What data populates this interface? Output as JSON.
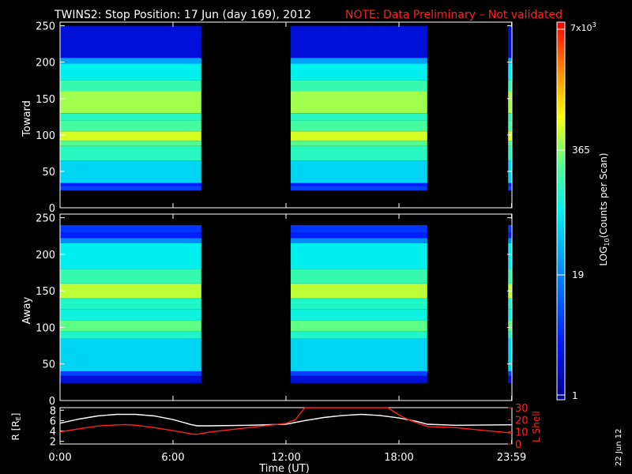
{
  "title": {
    "main": "TWINS2: Stop Position: 17 Jun (day 169), 2012",
    "note": "NOTE: Data Preliminary – Not validated"
  },
  "chart_data": [
    {
      "type": "heatmap",
      "ylabel": "Toward",
      "ylim": [
        0,
        255
      ],
      "yticks": [
        0,
        50,
        100,
        150,
        200,
        250
      ],
      "x_hours": [
        0,
        24
      ],
      "data_intervals_hours": [
        [
          0.0,
          7.5
        ],
        [
          12.25,
          19.5
        ],
        [
          23.8,
          24.0
        ]
      ],
      "band_profile": [
        {
          "y": [
            24,
            30
          ],
          "level": 0.22
        },
        {
          "y": [
            30,
            34
          ],
          "level": 0.16
        },
        {
          "y": [
            34,
            65
          ],
          "level": 0.46
        },
        {
          "y": [
            65,
            85
          ],
          "level": 0.56
        },
        {
          "y": [
            85,
            92
          ],
          "level": 0.62
        },
        {
          "y": [
            92,
            105
          ],
          "level": 0.72
        },
        {
          "y": [
            105,
            120
          ],
          "level": 0.6
        },
        {
          "y": [
            120,
            130
          ],
          "level": 0.56
        },
        {
          "y": [
            130,
            160
          ],
          "level": 0.68
        },
        {
          "y": [
            160,
            175
          ],
          "level": 0.58
        },
        {
          "y": [
            175,
            198
          ],
          "level": 0.5
        },
        {
          "y": [
            198,
            206
          ],
          "level": 0.38
        },
        {
          "y": [
            206,
            250
          ],
          "level": 0.1
        }
      ]
    },
    {
      "type": "heatmap",
      "ylabel": "Away",
      "ylim": [
        0,
        255
      ],
      "yticks": [
        0,
        50,
        100,
        150,
        200,
        250
      ],
      "x_hours": [
        0,
        24
      ],
      "data_intervals_hours": [
        [
          0.0,
          7.5
        ],
        [
          12.25,
          19.5
        ],
        [
          23.8,
          24.0
        ]
      ],
      "band_profile": [
        {
          "y": [
            24,
            34
          ],
          "level": 0.1
        },
        {
          "y": [
            34,
            40
          ],
          "level": 0.22
        },
        {
          "y": [
            40,
            85
          ],
          "level": 0.46
        },
        {
          "y": [
            85,
            95
          ],
          "level": 0.55
        },
        {
          "y": [
            95,
            110
          ],
          "level": 0.63
        },
        {
          "y": [
            110,
            125
          ],
          "level": 0.52
        },
        {
          "y": [
            125,
            140
          ],
          "level": 0.55
        },
        {
          "y": [
            140,
            160
          ],
          "level": 0.7
        },
        {
          "y": [
            160,
            180
          ],
          "level": 0.58
        },
        {
          "y": [
            180,
            215
          ],
          "level": 0.5
        },
        {
          "y": [
            215,
            222
          ],
          "level": 0.34
        },
        {
          "y": [
            222,
            230
          ],
          "level": 0.16
        },
        {
          "y": [
            230,
            240
          ],
          "level": 0.2
        }
      ]
    },
    {
      "type": "line",
      "xlabel": "Time (UT)",
      "xticks": [
        "0:00",
        "6:00",
        "12:00",
        "18:00",
        "23:59"
      ],
      "xtick_hours": [
        0,
        6,
        12,
        18,
        23.983
      ],
      "ylabel_left": "R [R_E]",
      "ylabel_left_main": "R [R",
      "ylabel_left_sub": "E",
      "ylabel_left_end": "]",
      "ylim_left": [
        1.5,
        8.5
      ],
      "yticks_left": [
        2,
        4,
        6,
        8
      ],
      "ylabel_right": "L Shell",
      "ylim_right": [
        0,
        30
      ],
      "yticks_right": [
        0,
        10,
        20,
        30
      ],
      "series": [
        {
          "name": "R [R_E]",
          "axis": "left",
          "color": "#ffffff",
          "x": [
            0,
            1,
            2,
            3,
            4,
            5,
            6,
            7,
            7.3,
            8,
            10,
            12,
            13,
            14,
            15,
            16,
            17,
            18,
            19,
            19.5,
            21,
            24
          ],
          "y": [
            5.5,
            6.3,
            6.9,
            7.2,
            7.2,
            6.9,
            6.2,
            5.2,
            5.0,
            5.0,
            5.1,
            5.3,
            6.0,
            6.6,
            7.0,
            7.2,
            7.0,
            6.5,
            5.8,
            5.3,
            5.1,
            5.2
          ]
        },
        {
          "name": "L Shell",
          "axis": "right",
          "color": "#ff2020",
          "x": [
            0,
            1,
            2,
            3,
            3.5,
            4,
            5,
            6,
            7,
            7.3,
            8,
            10,
            12,
            12.5,
            13,
            17.4,
            18,
            18.5,
            19.5,
            21,
            24
          ],
          "y": [
            10,
            12.5,
            14.8,
            15.8,
            16,
            15.5,
            13.5,
            11,
            8.3,
            8,
            10,
            13.5,
            17,
            20,
            30,
            30,
            24,
            20,
            14.5,
            13.5,
            9
          ]
        }
      ]
    }
  ],
  "colorbar": {
    "ticks": [
      "1",
      "19",
      "365"
    ],
    "top_label_main": "7x10",
    "top_label_exp": "3",
    "label_main": "LOG",
    "label_sub": "10",
    "label_rest": "(Counts per Scan)"
  },
  "footer": {
    "date": "22 Jun 12"
  }
}
